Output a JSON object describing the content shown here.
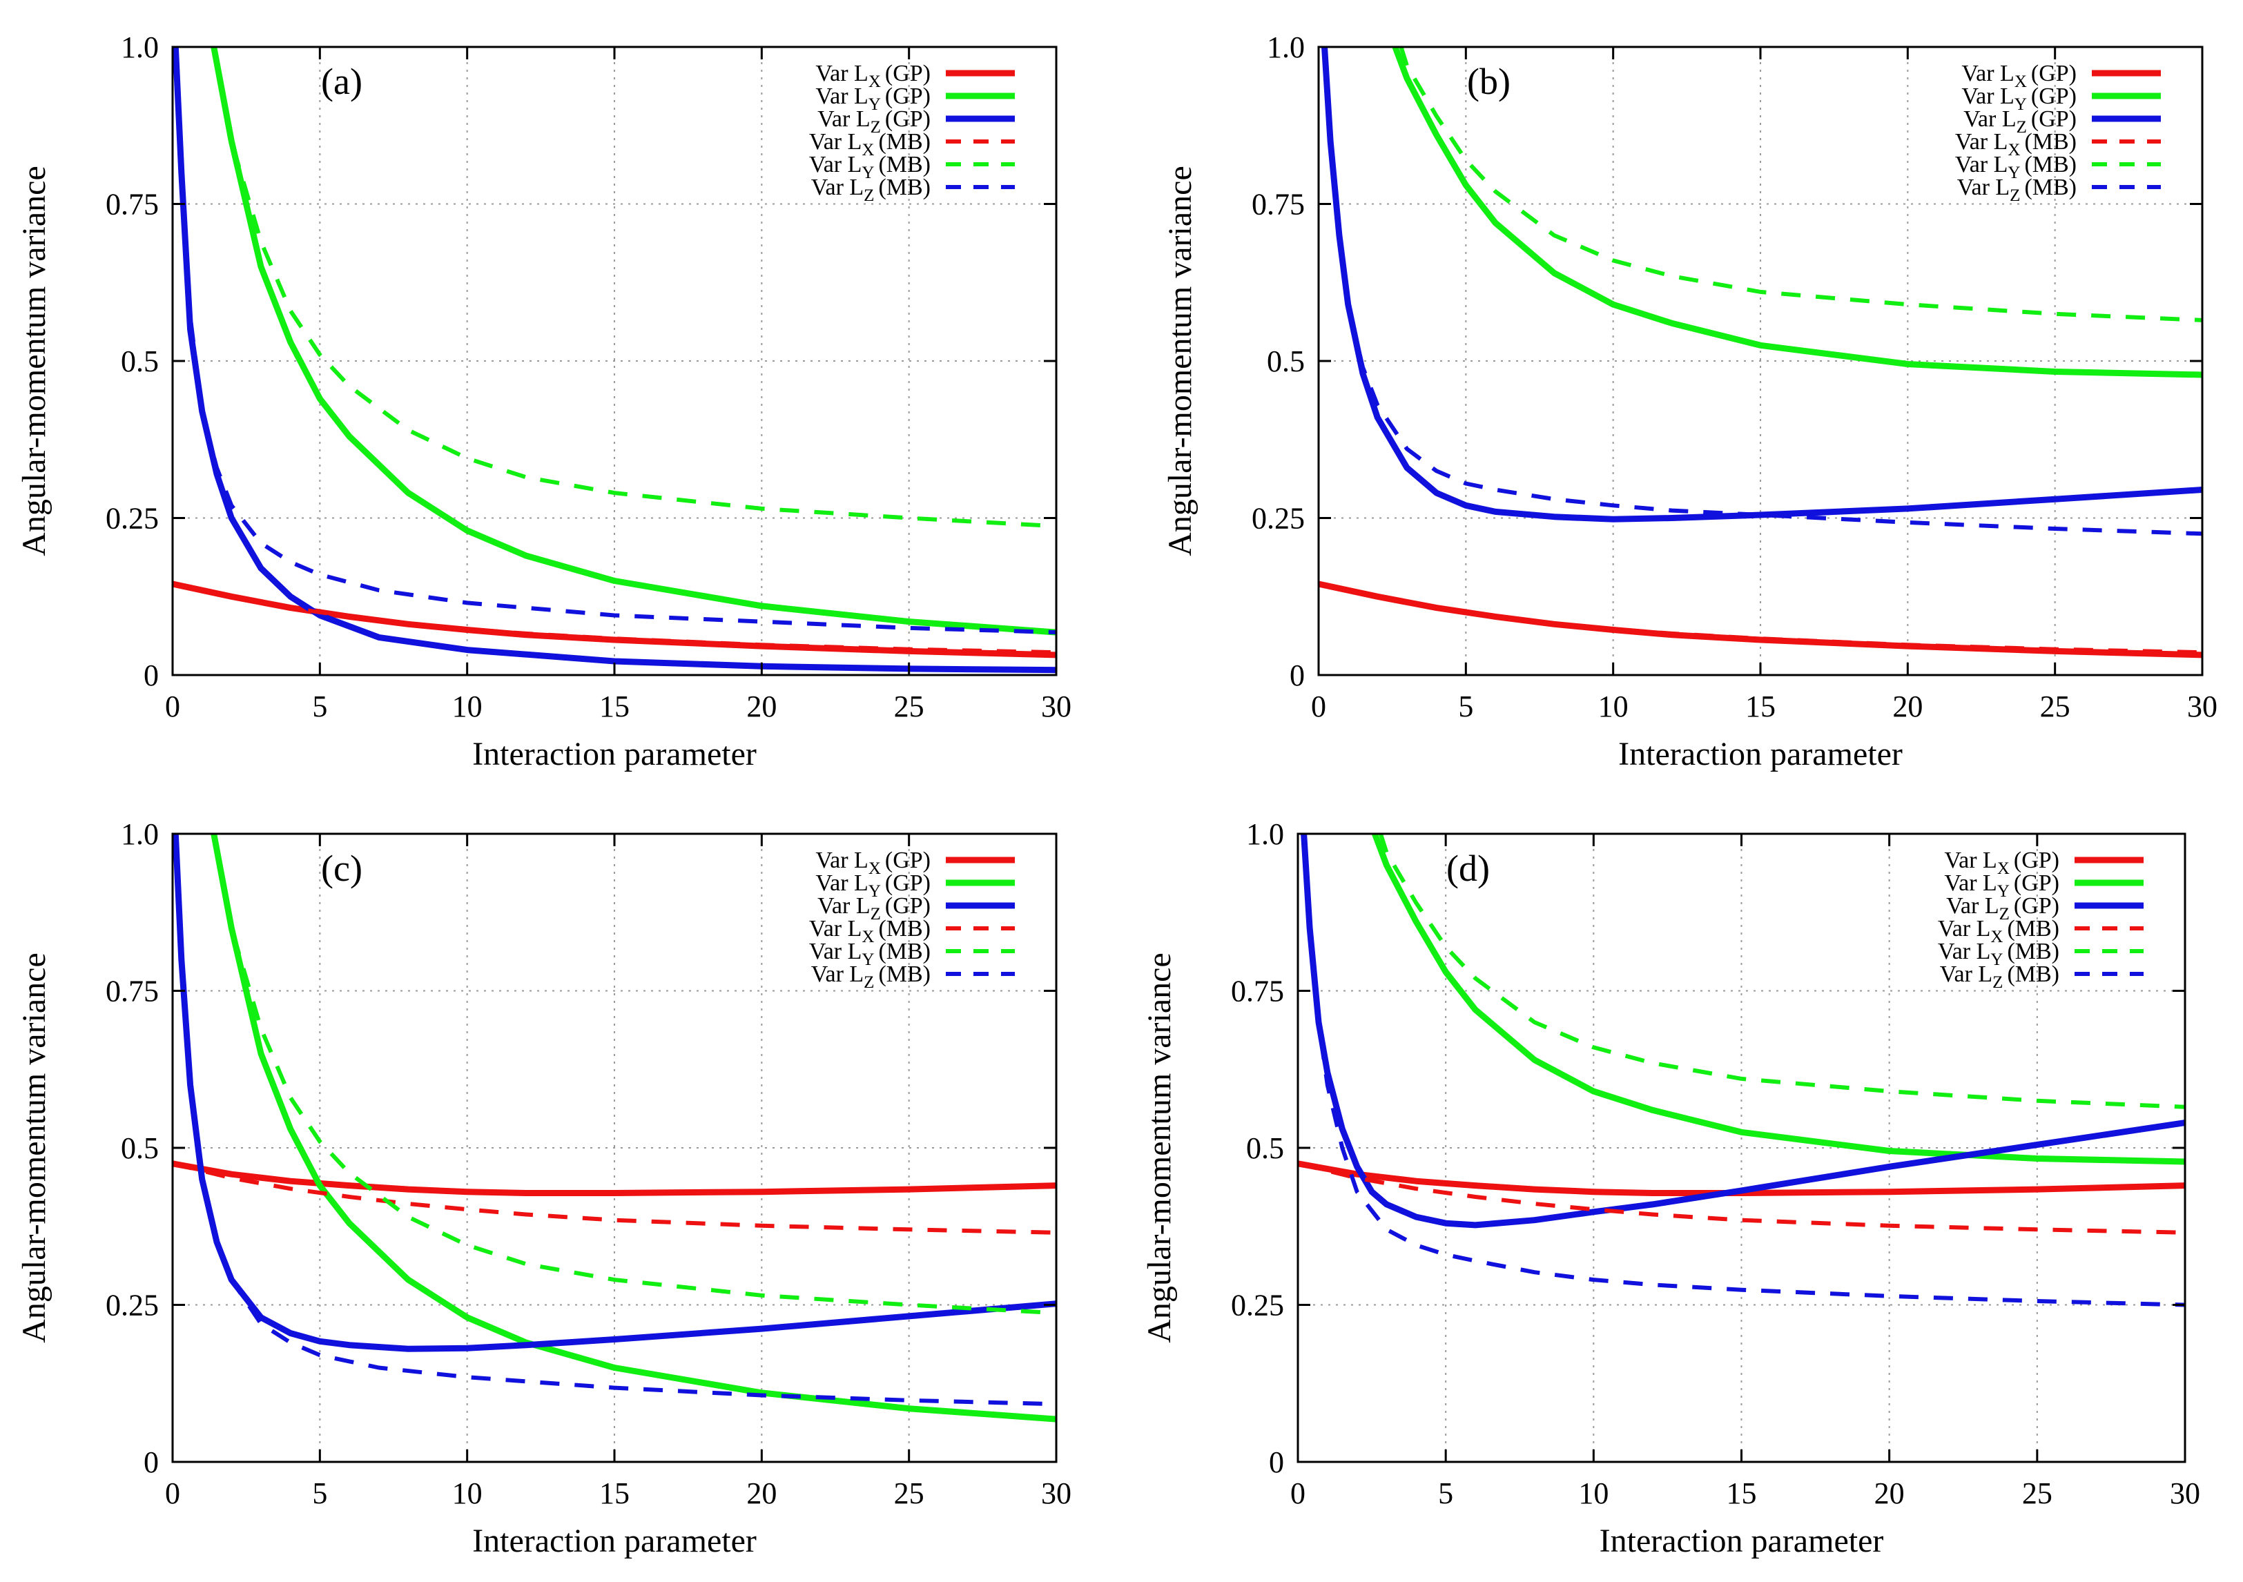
{
  "figure": {
    "colors": {
      "red": "#ee1111",
      "green": "#11ee11",
      "blue": "#1111dd",
      "grid": "#999999"
    }
  },
  "chart_data": [
    {
      "type": "line",
      "panel_label": "(a)",
      "xlabel": "Interaction parameter",
      "ylabel": "Angular-momentum variance",
      "xlim": [
        0,
        30
      ],
      "ylim": [
        0,
        1.0
      ],
      "xticks": [
        "0",
        "5",
        "10",
        "15",
        "20",
        "25",
        "30"
      ],
      "yticks": [
        "0",
        "0.25",
        "0.5",
        "0.75",
        "1.0"
      ],
      "grid": true,
      "legend_position": "top-right",
      "series": [
        {
          "name": "Var L",
          "sub": "X",
          "suffix": "(GP)",
          "color": "#ee1111",
          "style": "solid",
          "x": [
            0,
            2,
            4,
            6,
            8,
            10,
            12,
            15,
            20,
            25,
            30
          ],
          "y": [
            0.145,
            0.125,
            0.107,
            0.093,
            0.081,
            0.072,
            0.064,
            0.056,
            0.046,
            0.038,
            0.032
          ]
        },
        {
          "name": "Var L",
          "sub": "Y",
          "suffix": "(GP)",
          "color": "#11ee11",
          "style": "solid",
          "x": [
            1.4,
            2,
            3,
            4,
            5,
            6,
            8,
            10,
            12,
            15,
            20,
            25,
            30
          ],
          "y": [
            1.0,
            0.85,
            0.65,
            0.53,
            0.44,
            0.38,
            0.29,
            0.23,
            0.19,
            0.15,
            0.11,
            0.085,
            0.068
          ]
        },
        {
          "name": "Var L",
          "sub": "Z",
          "suffix": "(GP)",
          "color": "#1111dd",
          "style": "solid",
          "x": [
            0.1,
            0.3,
            0.6,
            1,
            1.5,
            2,
            3,
            4,
            5,
            7,
            10,
            15,
            20,
            25,
            30
          ],
          "y": [
            1.0,
            0.8,
            0.55,
            0.42,
            0.32,
            0.25,
            0.17,
            0.125,
            0.095,
            0.06,
            0.04,
            0.022,
            0.014,
            0.01,
            0.008
          ]
        },
        {
          "name": "Var L",
          "sub": "X",
          "suffix": "(MB)",
          "color": "#ee1111",
          "style": "dashed",
          "x": [
            0,
            2,
            4,
            6,
            8,
            10,
            12,
            15,
            20,
            25,
            30
          ],
          "y": [
            0.145,
            0.125,
            0.107,
            0.093,
            0.082,
            0.073,
            0.066,
            0.058,
            0.048,
            0.041,
            0.036
          ]
        },
        {
          "name": "Var L",
          "sub": "Y",
          "suffix": "(MB)",
          "color": "#11ee11",
          "style": "dashed",
          "x": [
            1.4,
            2,
            3,
            4,
            5,
            6,
            8,
            10,
            12,
            15,
            20,
            25,
            30
          ],
          "y": [
            1.0,
            0.85,
            0.69,
            0.58,
            0.51,
            0.46,
            0.39,
            0.345,
            0.315,
            0.29,
            0.265,
            0.25,
            0.237
          ]
        },
        {
          "name": "Var L",
          "sub": "Z",
          "suffix": "(MB)",
          "color": "#1111dd",
          "style": "dashed",
          "x": [
            0.1,
            0.3,
            0.6,
            1,
            1.5,
            2,
            3,
            4,
            5,
            7,
            10,
            15,
            20,
            25,
            30
          ],
          "y": [
            1.0,
            0.8,
            0.57,
            0.42,
            0.33,
            0.27,
            0.21,
            0.18,
            0.16,
            0.135,
            0.115,
            0.095,
            0.085,
            0.075,
            0.068
          ]
        }
      ]
    },
    {
      "type": "line",
      "panel_label": "(b)",
      "xlabel": "Interaction parameter",
      "ylabel": "Angular-momentum variance",
      "xlim": [
        0,
        30
      ],
      "ylim": [
        0,
        1.0
      ],
      "xticks": [
        "0",
        "5",
        "10",
        "15",
        "20",
        "25",
        "30"
      ],
      "yticks": [
        "0",
        "0.25",
        "0.5",
        "0.75",
        "1.0"
      ],
      "grid": true,
      "legend_position": "top-right",
      "series": [
        {
          "name": "Var L",
          "sub": "X",
          "suffix": "(GP)",
          "color": "#ee1111",
          "style": "solid",
          "x": [
            0,
            2,
            4,
            6,
            8,
            10,
            12,
            15,
            20,
            25,
            30
          ],
          "y": [
            0.145,
            0.125,
            0.107,
            0.093,
            0.081,
            0.072,
            0.064,
            0.056,
            0.046,
            0.038,
            0.032
          ]
        },
        {
          "name": "Var L",
          "sub": "Y",
          "suffix": "(GP)",
          "color": "#11ee11",
          "style": "solid",
          "x": [
            2.6,
            3,
            4,
            5,
            6,
            8,
            10,
            12,
            15,
            20,
            25,
            30
          ],
          "y": [
            1.0,
            0.95,
            0.86,
            0.78,
            0.72,
            0.64,
            0.59,
            0.56,
            0.525,
            0.495,
            0.483,
            0.478
          ]
        },
        {
          "name": "Var L",
          "sub": "Z",
          "suffix": "(GP)",
          "color": "#1111dd",
          "style": "solid",
          "x": [
            0.2,
            0.4,
            0.7,
            1,
            1.5,
            2,
            3,
            4,
            5,
            6,
            8,
            10,
            12,
            15,
            20,
            25,
            30
          ],
          "y": [
            1.0,
            0.85,
            0.7,
            0.59,
            0.48,
            0.41,
            0.33,
            0.29,
            0.27,
            0.26,
            0.252,
            0.248,
            0.25,
            0.255,
            0.265,
            0.28,
            0.295
          ]
        },
        {
          "name": "Var L",
          "sub": "X",
          "suffix": "(MB)",
          "color": "#ee1111",
          "style": "dashed",
          "x": [
            0,
            2,
            4,
            6,
            8,
            10,
            12,
            15,
            20,
            25,
            30
          ],
          "y": [
            0.145,
            0.125,
            0.107,
            0.093,
            0.082,
            0.073,
            0.066,
            0.058,
            0.048,
            0.041,
            0.036
          ]
        },
        {
          "name": "Var L",
          "sub": "Y",
          "suffix": "(MB)",
          "color": "#11ee11",
          "style": "dashed",
          "x": [
            2.8,
            3,
            4,
            5,
            6,
            8,
            10,
            12,
            15,
            20,
            25,
            30
          ],
          "y": [
            1.0,
            0.97,
            0.89,
            0.82,
            0.77,
            0.7,
            0.66,
            0.635,
            0.61,
            0.59,
            0.575,
            0.565
          ]
        },
        {
          "name": "Var L",
          "sub": "Z",
          "suffix": "(MB)",
          "color": "#1111dd",
          "style": "dashed",
          "x": [
            0.2,
            0.4,
            0.7,
            1,
            1.5,
            2,
            3,
            4,
            5,
            6,
            8,
            10,
            12,
            15,
            20,
            25,
            30
          ],
          "y": [
            1.0,
            0.85,
            0.7,
            0.59,
            0.49,
            0.43,
            0.36,
            0.325,
            0.305,
            0.295,
            0.28,
            0.27,
            0.262,
            0.255,
            0.243,
            0.233,
            0.225
          ]
        }
      ]
    },
    {
      "type": "line",
      "panel_label": "(c)",
      "xlabel": "Interaction parameter",
      "ylabel": "Angular-momentum variance",
      "xlim": [
        0,
        30
      ],
      "ylim": [
        0,
        1.0
      ],
      "xticks": [
        "0",
        "5",
        "10",
        "15",
        "20",
        "25",
        "30"
      ],
      "yticks": [
        "0",
        "0.25",
        "0.5",
        "0.75",
        "1.0"
      ],
      "grid": true,
      "legend_position": "top-right",
      "series": [
        {
          "name": "Var L",
          "sub": "X",
          "suffix": "(GP)",
          "color": "#ee1111",
          "style": "solid",
          "x": [
            0,
            2,
            4,
            6,
            8,
            10,
            12,
            15,
            20,
            25,
            30
          ],
          "y": [
            0.475,
            0.458,
            0.447,
            0.44,
            0.434,
            0.43,
            0.428,
            0.428,
            0.43,
            0.434,
            0.44
          ]
        },
        {
          "name": "Var L",
          "sub": "Y",
          "suffix": "(GP)",
          "color": "#11ee11",
          "style": "solid",
          "x": [
            1.4,
            2,
            3,
            4,
            5,
            6,
            8,
            10,
            12,
            15,
            20,
            25,
            30
          ],
          "y": [
            1.0,
            0.85,
            0.65,
            0.53,
            0.44,
            0.38,
            0.29,
            0.23,
            0.19,
            0.15,
            0.11,
            0.085,
            0.068
          ]
        },
        {
          "name": "Var L",
          "sub": "Z",
          "suffix": "(GP)",
          "color": "#1111dd",
          "style": "solid",
          "x": [
            0.1,
            0.3,
            0.6,
            1,
            1.5,
            2,
            3,
            4,
            5,
            6,
            8,
            10,
            12,
            15,
            20,
            25,
            30
          ],
          "y": [
            1.0,
            0.8,
            0.6,
            0.45,
            0.35,
            0.29,
            0.23,
            0.205,
            0.192,
            0.186,
            0.18,
            0.181,
            0.186,
            0.195,
            0.212,
            0.232,
            0.252
          ]
        },
        {
          "name": "Var L",
          "sub": "X",
          "suffix": "(MB)",
          "color": "#ee1111",
          "style": "dashed",
          "x": [
            0,
            2,
            4,
            6,
            8,
            10,
            12,
            15,
            20,
            25,
            30
          ],
          "y": [
            0.475,
            0.452,
            0.435,
            0.422,
            0.411,
            0.402,
            0.394,
            0.385,
            0.376,
            0.37,
            0.365
          ]
        },
        {
          "name": "Var L",
          "sub": "Y",
          "suffix": "(MB)",
          "color": "#11ee11",
          "style": "dashed",
          "x": [
            1.4,
            2,
            3,
            4,
            5,
            6,
            8,
            10,
            12,
            15,
            20,
            25,
            30
          ],
          "y": [
            1.0,
            0.85,
            0.69,
            0.58,
            0.51,
            0.46,
            0.39,
            0.345,
            0.315,
            0.29,
            0.265,
            0.25,
            0.237
          ]
        },
        {
          "name": "Var L",
          "sub": "Z",
          "suffix": "(MB)",
          "color": "#1111dd",
          "style": "dashed",
          "x": [
            0.1,
            0.3,
            0.6,
            1,
            1.5,
            2,
            3,
            4,
            5,
            7,
            10,
            15,
            20,
            25,
            30
          ],
          "y": [
            1.0,
            0.8,
            0.6,
            0.45,
            0.35,
            0.29,
            0.22,
            0.19,
            0.17,
            0.15,
            0.135,
            0.118,
            0.106,
            0.098,
            0.092
          ]
        }
      ]
    },
    {
      "type": "line",
      "panel_label": "(d)",
      "xlabel": "Interaction parameter",
      "ylabel": "Angular-momentum variance",
      "xlim": [
        0,
        30
      ],
      "ylim": [
        0,
        1.0
      ],
      "xticks": [
        "0",
        "5",
        "10",
        "15",
        "20",
        "25",
        "30"
      ],
      "yticks": [
        "0",
        "0.25",
        "0.5",
        "0.75",
        "1.0"
      ],
      "grid": true,
      "legend_position": "top-right",
      "series": [
        {
          "name": "Var L",
          "sub": "X",
          "suffix": "(GP)",
          "color": "#ee1111",
          "style": "solid",
          "x": [
            0,
            2,
            4,
            6,
            8,
            10,
            12,
            15,
            20,
            25,
            30
          ],
          "y": [
            0.475,
            0.458,
            0.447,
            0.44,
            0.434,
            0.43,
            0.428,
            0.428,
            0.43,
            0.434,
            0.44
          ]
        },
        {
          "name": "Var L",
          "sub": "Y",
          "suffix": "(GP)",
          "color": "#11ee11",
          "style": "solid",
          "x": [
            2.6,
            3,
            4,
            5,
            6,
            8,
            10,
            12,
            15,
            20,
            25,
            30
          ],
          "y": [
            1.0,
            0.95,
            0.86,
            0.78,
            0.72,
            0.64,
            0.59,
            0.56,
            0.525,
            0.495,
            0.483,
            0.478
          ]
        },
        {
          "name": "Var L",
          "sub": "Z",
          "suffix": "(GP)",
          "color": "#1111dd",
          "style": "solid",
          "x": [
            0.2,
            0.4,
            0.7,
            1,
            1.5,
            2,
            2.5,
            3,
            4,
            5,
            6,
            8,
            10,
            12,
            15,
            20,
            25,
            30
          ],
          "y": [
            1.0,
            0.85,
            0.7,
            0.62,
            0.53,
            0.47,
            0.43,
            0.41,
            0.39,
            0.38,
            0.377,
            0.385,
            0.398,
            0.41,
            0.432,
            0.47,
            0.505,
            0.54
          ]
        },
        {
          "name": "Var L",
          "sub": "X",
          "suffix": "(MB)",
          "color": "#ee1111",
          "style": "dashed",
          "x": [
            0,
            2,
            4,
            6,
            8,
            10,
            12,
            15,
            20,
            25,
            30
          ],
          "y": [
            0.475,
            0.452,
            0.435,
            0.422,
            0.411,
            0.402,
            0.394,
            0.385,
            0.376,
            0.37,
            0.365
          ]
        },
        {
          "name": "Var L",
          "sub": "Y",
          "suffix": "(MB)",
          "color": "#11ee11",
          "style": "dashed",
          "x": [
            2.8,
            3,
            4,
            5,
            6,
            8,
            10,
            12,
            15,
            20,
            25,
            30
          ],
          "y": [
            1.0,
            0.97,
            0.89,
            0.82,
            0.77,
            0.7,
            0.66,
            0.635,
            0.61,
            0.59,
            0.575,
            0.565
          ]
        },
        {
          "name": "Var L",
          "sub": "Z",
          "suffix": "(MB)",
          "color": "#1111dd",
          "style": "dashed",
          "x": [
            0.2,
            0.4,
            0.7,
            1,
            1.5,
            2,
            3,
            4,
            5,
            6,
            8,
            10,
            12,
            15,
            20,
            25,
            30
          ],
          "y": [
            1.0,
            0.85,
            0.7,
            0.6,
            0.5,
            0.43,
            0.37,
            0.345,
            0.33,
            0.32,
            0.302,
            0.29,
            0.282,
            0.274,
            0.264,
            0.256,
            0.25
          ]
        }
      ]
    }
  ]
}
